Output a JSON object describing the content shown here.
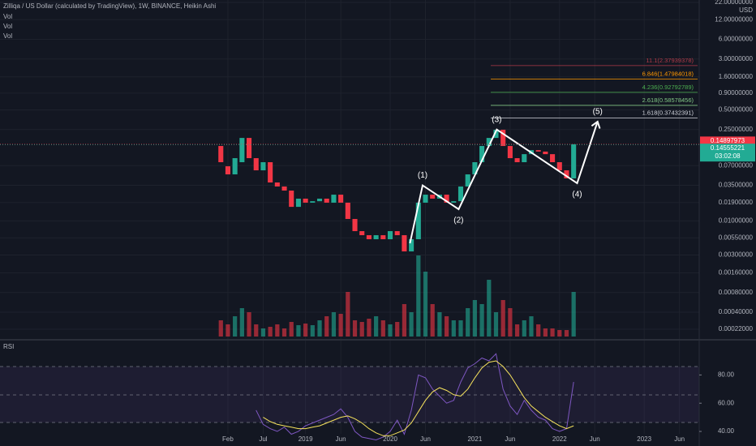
{
  "chart_data": [
    {
      "type": "candlestick",
      "title": "Zilliqa / US Dollar (calculated by TradingView), 1W, BINANCE, Heikin Ashi",
      "indicator_labels": [
        "Vol",
        "Vol",
        "Vol"
      ],
      "y_unit": "USD",
      "log_scale": true,
      "grid": true,
      "up_color": "#22ab94",
      "down_color": "#f23645",
      "x": [
        0,
        1,
        2,
        3,
        4,
        5,
        6,
        7,
        8,
        9,
        10,
        11,
        12,
        13,
        14,
        15,
        16,
        17,
        18,
        19,
        20,
        21,
        22,
        23,
        24,
        25,
        26,
        27,
        28,
        29,
        30,
        31,
        32,
        33,
        34,
        35,
        36,
        37,
        38,
        39,
        40,
        41,
        42,
        43,
        44,
        45,
        46,
        47,
        48,
        49,
        50
      ],
      "open": [
        0.14,
        0.0685,
        0.0515,
        0.0791,
        0.186,
        0.0912,
        0.0594,
        0.0791,
        0.0387,
        0.0336,
        0.0291,
        0.0164,
        0.0219,
        0.019,
        0.02,
        0.0219,
        0.019,
        0.0252,
        0.019,
        0.0107,
        0.00697,
        0.00604,
        0.00524,
        0.00604,
        0.00524,
        0.00697,
        0.00604,
        0.00341,
        0.00524,
        0.019,
        0.0252,
        0.0219,
        0.0252,
        0.019,
        0.02,
        0.0336,
        0.0515,
        0.0791,
        0.14,
        0.186,
        0.248,
        0.14,
        0.0912,
        0.0791,
        0.105,
        0.121,
        0.115,
        0.105,
        0.0791,
        0.0594,
        0.0447
      ],
      "close": [
        0.0791,
        0.0515,
        0.0912,
        0.186,
        0.0912,
        0.0594,
        0.0791,
        0.0387,
        0.0336,
        0.0291,
        0.0164,
        0.0219,
        0.019,
        0.02,
        0.0219,
        0.019,
        0.0252,
        0.019,
        0.0107,
        0.00697,
        0.00604,
        0.00524,
        0.00604,
        0.00524,
        0.00697,
        0.00604,
        0.00341,
        0.00524,
        0.019,
        0.0252,
        0.0219,
        0.0252,
        0.019,
        0.02,
        0.0336,
        0.0515,
        0.0791,
        0.14,
        0.186,
        0.248,
        0.14,
        0.0912,
        0.0791,
        0.105,
        0.121,
        0.115,
        0.105,
        0.0791,
        0.0594,
        0.0447,
        0.149
      ],
      "xlim": [
        -31.3,
        67.8
      ],
      "xticks": [
        {
          "value": 1,
          "label": "Feb"
        },
        {
          "value": 6,
          "label": "Jul"
        },
        {
          "value": 12,
          "label": "2019"
        },
        {
          "value": 17,
          "label": "Jun"
        },
        {
          "value": 24,
          "label": "2020"
        },
        {
          "value": 29,
          "label": "Jun"
        },
        {
          "value": 36,
          "label": "2021"
        },
        {
          "value": 41,
          "label": "Jun"
        },
        {
          "value": 48,
          "label": "2022"
        },
        {
          "value": 53,
          "label": "Jun"
        },
        {
          "value": 60,
          "label": "2023"
        },
        {
          "value": 65,
          "label": "Jun"
        }
      ],
      "ylim": [
        0.00017,
        24
      ],
      "yticks": [
        {
          "value": 22,
          "label": "22.00000000"
        },
        {
          "value": 12,
          "label": "12.00000000"
        },
        {
          "value": 6,
          "label": "6.00000000"
        },
        {
          "value": 3,
          "label": "3.00000000"
        },
        {
          "value": 1.6,
          "label": "1.60000000"
        },
        {
          "value": 0.9,
          "label": "0.90000000"
        },
        {
          "value": 0.5,
          "label": "0.50000000"
        },
        {
          "value": 0.25,
          "label": "0.25000000"
        },
        {
          "value": 0.07,
          "label": "0.07000000"
        },
        {
          "value": 0.035,
          "label": "0.03500000"
        },
        {
          "value": 0.019,
          "label": "0.01900000"
        },
        {
          "value": 0.01,
          "label": "0.01000000"
        },
        {
          "value": 0.0055,
          "label": "0.00550000"
        },
        {
          "value": 0.003,
          "label": "0.00300000"
        },
        {
          "value": 0.0016,
          "label": "0.00160000"
        },
        {
          "value": 0.0008,
          "label": "0.00080000"
        },
        {
          "value": 0.0004,
          "label": "0.00040000"
        },
        {
          "value": 0.00022,
          "label": "0.00022000"
        }
      ],
      "price_tags": [
        {
          "value": 0.14897973,
          "label": "0.14897973",
          "color": "#f23645"
        },
        {
          "value": 0.14555221,
          "label": "0.14555221",
          "color": "#22ab94"
        }
      ],
      "countdown": "03:02:08",
      "fib_levels": [
        {
          "value": 2.37939378,
          "label": "11.1(2.37939378)",
          "color": "#b23a48"
        },
        {
          "value": 1.47984018,
          "label": "6.846(1.47984018)",
          "color": "#ff9800"
        },
        {
          "value": 0.92792789,
          "label": "4.236(0.92792789)",
          "color": "#4caf50"
        },
        {
          "value": 0.58578456,
          "label": "2.618(0.58578456)",
          "color": "#81c784"
        },
        {
          "value": 0.37432391,
          "label": "1.618(0.37432391)",
          "color": "#d1d4dc"
        }
      ],
      "wave": {
        "x": [
          26.8,
          28.6,
          33.7,
          39.1,
          50.5,
          53.4
        ],
        "values": [
          0.00454,
          0.035,
          0.0151,
          0.25,
          0.0376,
          0.33
        ],
        "labels": [
          null,
          "(1)",
          "(2)",
          "(3)",
          "(4)",
          "(5)"
        ]
      }
    },
    {
      "type": "bar",
      "x": [
        0,
        1,
        2,
        3,
        4,
        5,
        6,
        7,
        8,
        9,
        10,
        11,
        12,
        13,
        14,
        15,
        16,
        17,
        18,
        19,
        20,
        21,
        22,
        23,
        24,
        25,
        26,
        27,
        28,
        29,
        30,
        31,
        32,
        33,
        34,
        35,
        36,
        37,
        38,
        39,
        40,
        41,
        42,
        43,
        44,
        45,
        46,
        47,
        48,
        49,
        50
      ],
      "values": [
        20,
        15,
        25,
        35,
        30,
        15,
        10,
        12,
        15,
        10,
        18,
        14,
        16,
        14,
        20,
        25,
        30,
        28,
        55,
        20,
        18,
        22,
        25,
        20,
        15,
        18,
        40,
        30,
        100,
        80,
        40,
        30,
        25,
        20,
        20,
        35,
        45,
        40,
        70,
        30,
        45,
        35,
        15,
        20,
        25,
        15,
        10,
        10,
        8,
        8,
        55
      ],
      "ylim": [
        0,
        100
      ]
    },
    {
      "type": "line",
      "title": "RSI",
      "x": [
        0,
        1,
        2,
        3,
        4,
        5,
        6,
        7,
        8,
        9,
        10,
        11,
        12,
        13,
        14,
        15,
        16,
        17,
        18,
        19,
        20,
        21,
        22,
        23,
        24,
        25,
        26,
        27,
        28,
        29,
        30,
        31,
        32,
        33,
        34,
        35,
        36,
        37,
        38,
        39,
        40,
        41,
        42,
        43,
        44,
        45,
        46,
        47,
        48,
        49,
        50
      ],
      "series": [
        {
          "color": "#7e57c2",
          "values": [
            null,
            null,
            null,
            null,
            null,
            55,
            45,
            42,
            40,
            43,
            38,
            40,
            44,
            46,
            48,
            50,
            52,
            56,
            50,
            40,
            36,
            35,
            34,
            36,
            40,
            48,
            38,
            55,
            80,
            78,
            70,
            65,
            60,
            62,
            75,
            85,
            88,
            92,
            90,
            95,
            70,
            58,
            52,
            62,
            55,
            50,
            48,
            42,
            40,
            42,
            75
          ]
        },
        {
          "color": "#f7e35d",
          "values": [
            null,
            null,
            null,
            null,
            null,
            null,
            50,
            47,
            45,
            44,
            43,
            42,
            42,
            43,
            44,
            46,
            48,
            50,
            51,
            49,
            46,
            42,
            39,
            37,
            37,
            39,
            41,
            46,
            54,
            62,
            68,
            71,
            69,
            66,
            65,
            70,
            78,
            85,
            89,
            90,
            86,
            80,
            72,
            64,
            58,
            54,
            50,
            47,
            44,
            42,
            44
          ]
        }
      ],
      "ylim": [
        38.3,
        103.2
      ],
      "yticks": [
        {
          "value": 80,
          "label": "80.00"
        },
        {
          "value": 60,
          "label": "60.00"
        },
        {
          "value": 40,
          "label": "40.00"
        }
      ]
    }
  ]
}
